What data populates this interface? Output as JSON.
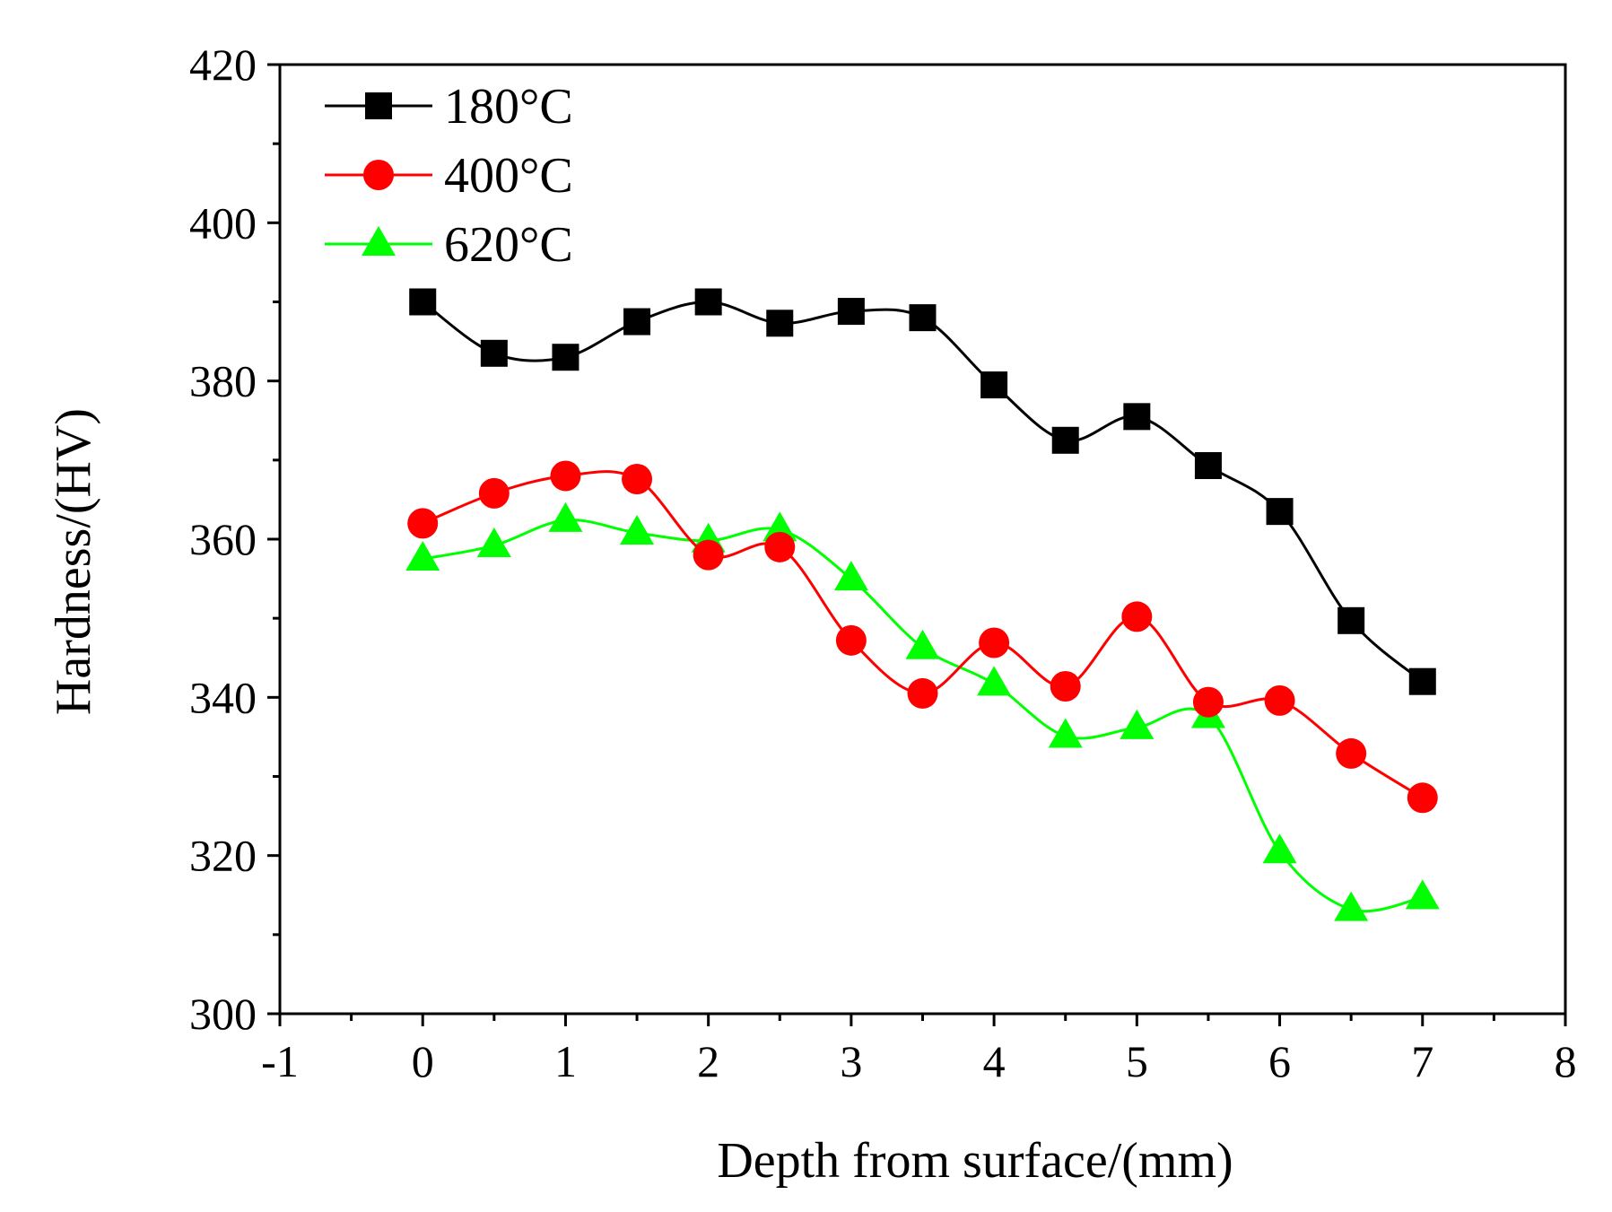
{
  "chart_data": {
    "type": "line",
    "title": "",
    "xlabel": "Depth from surface/(mm)",
    "ylabel": "Hardness/(HV)",
    "xlim": [
      -1,
      8
    ],
    "ylim": [
      300,
      420
    ],
    "x_ticks": [
      -1,
      0,
      1,
      2,
      3,
      4,
      5,
      6,
      7,
      8
    ],
    "y_ticks": [
      300,
      320,
      340,
      360,
      380,
      400,
      420
    ],
    "x_tick_labels": [
      "-1",
      "0",
      "1",
      "2",
      "3",
      "4",
      "5",
      "6",
      "7",
      "8"
    ],
    "y_tick_labels": [
      "300",
      "320",
      "340",
      "360",
      "380",
      "400",
      "420"
    ],
    "grid": false,
    "legend_position": "top-left",
    "x": [
      0,
      0.5,
      1,
      1.5,
      2,
      2.5,
      3,
      3.5,
      4,
      4.5,
      5,
      5.5,
      6,
      6.5,
      7
    ],
    "series": [
      {
        "name": "180°C",
        "color": "#000000",
        "marker": "square",
        "values": [
          390,
          383.5,
          383,
          387.5,
          390,
          387.3,
          388.8,
          388,
          379.5,
          372.5,
          375.5,
          369.3,
          363.5,
          349.7,
          342
        ]
      },
      {
        "name": "400°C",
        "color": "#ff0000",
        "marker": "circle",
        "values": [
          362,
          365.8,
          368,
          367.6,
          358,
          359,
          347.2,
          340.5,
          346.9,
          341.4,
          350.2,
          339.4,
          339.6,
          332.9,
          327.3
        ]
      },
      {
        "name": "620°C",
        "color": "#00ff00",
        "marker": "triangle",
        "values": [
          357.5,
          359.2,
          362.4,
          360.8,
          359.8,
          361.2,
          355,
          346.3,
          341.7,
          335.1,
          336.2,
          337.6,
          320.5,
          313.2,
          314.7
        ]
      }
    ]
  }
}
